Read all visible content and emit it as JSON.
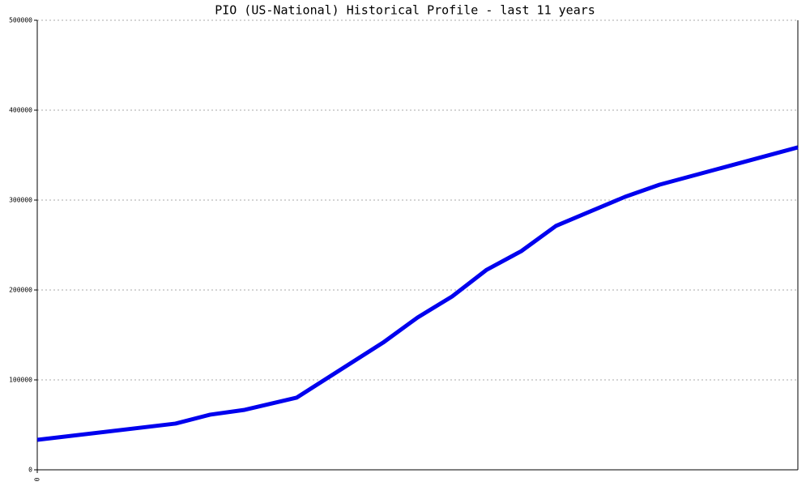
{
  "chart_data": {
    "type": "line",
    "title": "PIO (US-National) Historical Profile - last 11 years",
    "x": [
      0,
      2,
      2.5,
      3,
      3.75,
      5,
      5.5,
      6,
      6.5,
      7,
      7.5,
      8,
      8.5,
      9,
      11
    ],
    "series": [
      {
        "color": "#0000ee",
        "values": [
          33300,
          51400,
          61300,
          66700,
          80200,
          141400,
          169400,
          192800,
          222500,
          243200,
          271200,
          287400,
          303600,
          317100,
          358600
        ]
      }
    ],
    "xlim": [
      0,
      11
    ],
    "xticks": [
      0
    ],
    "ylim": [
      0,
      500000
    ],
    "yticks": [
      0,
      100000,
      200000,
      300000,
      400000,
      500000
    ],
    "grid": true
  }
}
